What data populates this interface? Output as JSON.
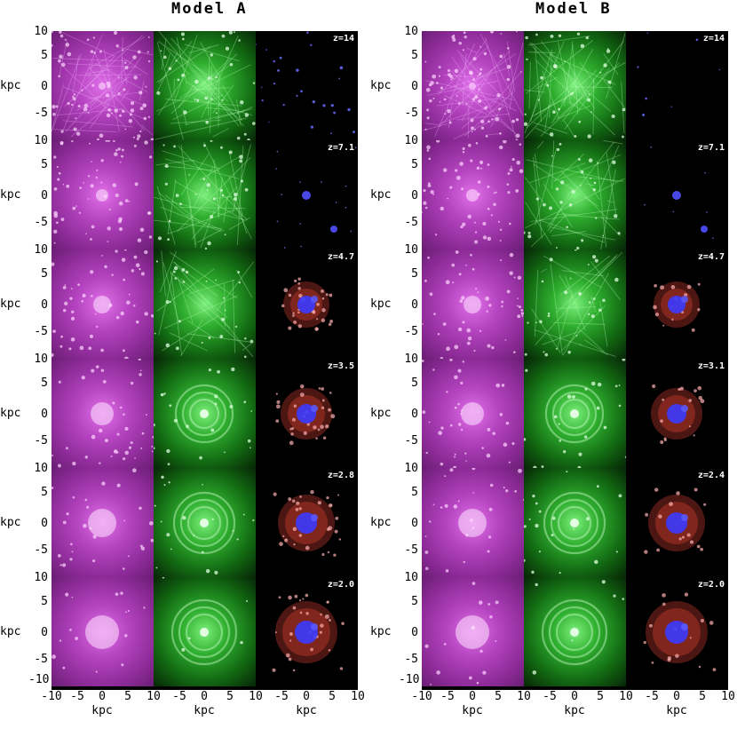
{
  "models": [
    {
      "title": "Model A",
      "redshifts": [
        "z=14",
        "z=7.1",
        "z=4.7",
        "z=3.5",
        "z=2.8",
        "z=2.0"
      ]
    },
    {
      "title": "Model B",
      "redshifts": [
        "z=14",
        "z=7.1",
        "z=4.7",
        "z=3.1",
        "z=2.4",
        "z=2.0"
      ]
    }
  ],
  "y_axis": {
    "label": "kpc",
    "ticks_A": [
      "10",
      "5",
      "0",
      "-5",
      "-10"
    ],
    "ticks_B": [
      "10",
      "5",
      "0",
      "-5",
      "-10"
    ]
  },
  "x_axis": {
    "label": "kpc",
    "ticks": [
      "-10",
      "-5",
      "0",
      "5",
      "10"
    ]
  },
  "colors": {
    "dark_matter": "#b544c0",
    "gas": "#2fae2f",
    "stars_old": "#3b3bff",
    "stars_young": "#c0392b"
  }
}
